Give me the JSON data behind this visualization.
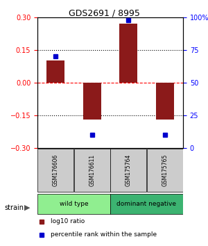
{
  "title": "GDS2691 / 8995",
  "samples": [
    "GSM176606",
    "GSM176611",
    "GSM175764",
    "GSM175765"
  ],
  "log10_ratio": [
    0.1,
    -0.17,
    0.27,
    -0.17
  ],
  "percentile_rank": [
    70,
    10,
    98,
    10
  ],
  "bar_color": "#8B1A1A",
  "dot_color": "#0000CD",
  "ylim_left": [
    -0.3,
    0.3
  ],
  "ylim_right": [
    0,
    100
  ],
  "yticks_left": [
    -0.3,
    -0.15,
    0,
    0.15,
    0.3
  ],
  "yticks_right": [
    0,
    25,
    50,
    75,
    100
  ],
  "ytick_labels_right": [
    "0",
    "25",
    "50",
    "75",
    "100%"
  ],
  "hlines": [
    0.15,
    0,
    -0.15
  ],
  "hline_styles": [
    "dotted",
    "dashed",
    "dotted"
  ],
  "hline_colors": [
    "black",
    "red",
    "black"
  ],
  "groups": [
    {
      "label": "wild type",
      "indices": [
        0,
        1
      ],
      "color": "#90EE90"
    },
    {
      "label": "dominant negative",
      "indices": [
        2,
        3
      ],
      "color": "#3CB371"
    }
  ],
  "strain_label": "strain",
  "legend_bar_label": "log10 ratio",
  "legend_dot_label": "percentile rank within the sample",
  "bar_width": 0.5,
  "fig_width": 3.0,
  "fig_height": 3.54,
  "background_color": "#ffffff"
}
